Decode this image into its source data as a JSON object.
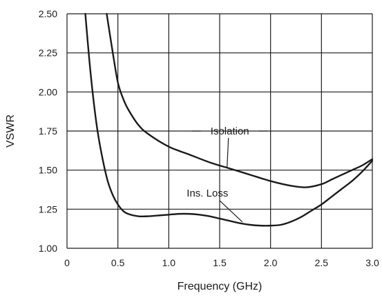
{
  "chart_data": {
    "type": "line",
    "xlabel": "Frequency (GHz)",
    "ylabel": "VSWR",
    "xlim": [
      0,
      3.0
    ],
    "ylim": [
      1.0,
      2.5
    ],
    "xticks": [
      0,
      0.5,
      1.0,
      1.5,
      2.0,
      2.5,
      3.0
    ],
    "xtick_labels": [
      "0",
      "0.5",
      "1.0",
      "1.5",
      "2.0",
      "2.5",
      "3.0"
    ],
    "yticks": [
      1.0,
      1.25,
      1.5,
      1.75,
      2.0,
      2.25,
      2.5
    ],
    "ytick_labels": [
      "1.00",
      "1.25",
      "1.50",
      "1.75",
      "2.00",
      "2.25",
      "2.50"
    ],
    "grid": true,
    "series": [
      {
        "name": "Isolation",
        "x": [
          0.39,
          0.45,
          0.5,
          0.55,
          0.6,
          0.7,
          0.8,
          1.0,
          1.2,
          1.4,
          1.6,
          1.8,
          2.0,
          2.2,
          2.35,
          2.5,
          2.6,
          2.7,
          2.8,
          2.9,
          3.0
        ],
        "y": [
          2.5,
          2.25,
          2.06,
          1.96,
          1.89,
          1.79,
          1.73,
          1.65,
          1.6,
          1.55,
          1.51,
          1.47,
          1.43,
          1.4,
          1.39,
          1.41,
          1.44,
          1.47,
          1.5,
          1.53,
          1.57
        ]
      },
      {
        "name": "Ins. Loss",
        "x": [
          0.18,
          0.22,
          0.26,
          0.3,
          0.35,
          0.4,
          0.45,
          0.5,
          0.55,
          0.6,
          0.7,
          0.8,
          0.9,
          1.0,
          1.1,
          1.2,
          1.3,
          1.4,
          1.5,
          1.6,
          1.7,
          1.8,
          1.9,
          2.0,
          2.1,
          2.2,
          2.3,
          2.4,
          2.5,
          2.6,
          2.7,
          2.8,
          2.9,
          3.0
        ],
        "y": [
          2.5,
          2.2,
          1.95,
          1.75,
          1.57,
          1.43,
          1.34,
          1.28,
          1.24,
          1.22,
          1.205,
          1.205,
          1.21,
          1.215,
          1.22,
          1.22,
          1.215,
          1.205,
          1.19,
          1.175,
          1.16,
          1.15,
          1.145,
          1.145,
          1.15,
          1.17,
          1.2,
          1.24,
          1.28,
          1.33,
          1.38,
          1.43,
          1.49,
          1.56
        ]
      }
    ],
    "annotations": [
      {
        "text": "Isolation",
        "series": "Isolation",
        "at_x": 1.6
      },
      {
        "text": "Ins. Loss",
        "series": "Ins. Loss",
        "at_x": 1.75
      }
    ]
  }
}
